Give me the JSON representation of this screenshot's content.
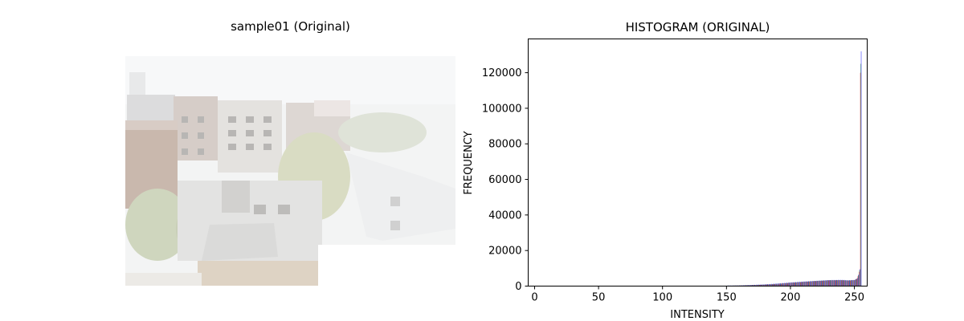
{
  "image_panel": {
    "title": "sample01 (Original)"
  },
  "colors": {
    "red": "#ff0000",
    "green": "#008000",
    "blue": "#0000ff"
  },
  "chart_data": {
    "type": "bar",
    "title": "HISTOGRAM (ORIGINAL)",
    "xlabel": "INTENSITY",
    "ylabel": "FREQUENCY",
    "xlim": [
      -5,
      260
    ],
    "ylim": [
      0,
      139000
    ],
    "xticks": [
      0,
      50,
      100,
      150,
      200,
      250
    ],
    "yticks": [
      0,
      20000,
      40000,
      60000,
      80000,
      100000,
      120000
    ],
    "grid": false,
    "series": [
      {
        "color": "#ff0000",
        "points": [
          [
            150,
            200
          ],
          [
            160,
            300
          ],
          [
            170,
            500
          ],
          [
            180,
            800
          ],
          [
            190,
            1200
          ],
          [
            200,
            1800
          ],
          [
            210,
            2300
          ],
          [
            220,
            2800
          ],
          [
            230,
            3200
          ],
          [
            240,
            3300
          ],
          [
            245,
            3100
          ],
          [
            250,
            3300
          ],
          [
            252,
            4000
          ],
          [
            253,
            5500
          ],
          [
            254,
            8000
          ],
          [
            255,
            120000
          ]
        ]
      },
      {
        "color": "#008000",
        "points": [
          [
            150,
            250
          ],
          [
            160,
            350
          ],
          [
            170,
            600
          ],
          [
            180,
            900
          ],
          [
            190,
            1300
          ],
          [
            200,
            1900
          ],
          [
            210,
            2400
          ],
          [
            220,
            2900
          ],
          [
            230,
            3300
          ],
          [
            240,
            3400
          ],
          [
            245,
            3200
          ],
          [
            250,
            3400
          ],
          [
            252,
            4200
          ],
          [
            253,
            6000
          ],
          [
            254,
            9000
          ],
          [
            255,
            125000
          ]
        ]
      },
      {
        "color": "#0000ff",
        "points": [
          [
            150,
            300
          ],
          [
            160,
            400
          ],
          [
            170,
            700
          ],
          [
            180,
            1000
          ],
          [
            190,
            1500
          ],
          [
            200,
            2100
          ],
          [
            210,
            2600
          ],
          [
            220,
            3000
          ],
          [
            230,
            3400
          ],
          [
            240,
            3500
          ],
          [
            245,
            3300
          ],
          [
            250,
            3500
          ],
          [
            252,
            4500
          ],
          [
            253,
            6500
          ],
          [
            254,
            9500
          ],
          [
            255,
            132000
          ]
        ]
      }
    ]
  }
}
